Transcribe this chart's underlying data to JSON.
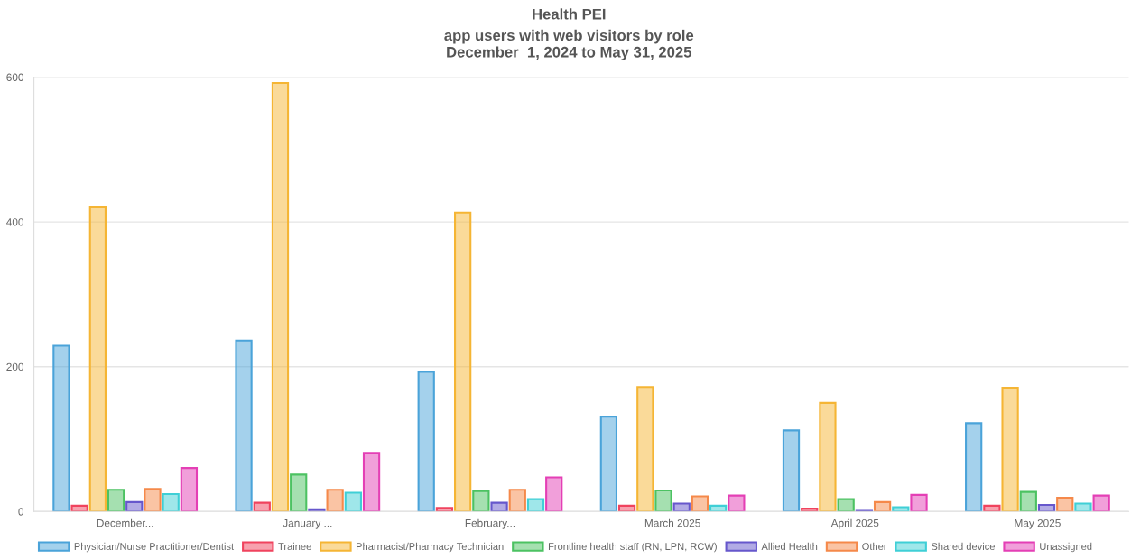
{
  "chart_data": {
    "type": "bar",
    "title": "Health PEI",
    "subtitle": "app users with web visitors by role\nDecember  1, 2024 to May 31, 2025",
    "categories": [
      "December...",
      "January ...",
      "February...",
      "March 2025",
      "April 2025",
      "May 2025"
    ],
    "series": [
      {
        "name": "Physician/Nurse Practitioner/Dentist",
        "color": "#4aa3d9",
        "values": [
          229,
          236,
          193,
          131,
          112,
          122
        ]
      },
      {
        "name": "Trainee",
        "color": "#f0435e",
        "values": [
          8,
          12,
          5,
          8,
          4,
          8
        ]
      },
      {
        "name": "Pharmacist/Pharmacy Technician",
        "color": "#f5b534",
        "values": [
          420,
          592,
          413,
          172,
          150,
          171
        ]
      },
      {
        "name": "Frontline health staff (RN, LPN, RCW)",
        "color": "#4cc262",
        "values": [
          30,
          51,
          28,
          29,
          17,
          27
        ]
      },
      {
        "name": "Allied Health",
        "color": "#6657cc",
        "values": [
          13,
          3,
          12,
          11,
          1,
          9
        ]
      },
      {
        "name": "Other",
        "color": "#f5894a",
        "values": [
          31,
          30,
          30,
          21,
          13,
          19
        ]
      },
      {
        "name": "Shared device",
        "color": "#3fcfd6",
        "values": [
          24,
          26,
          17,
          8,
          6,
          11
        ]
      },
      {
        "name": "Unassigned",
        "color": "#e43fb5",
        "values": [
          60,
          81,
          47,
          22,
          23,
          22
        ]
      }
    ],
    "ylim": [
      0,
      600
    ],
    "yticks": [
      0,
      200,
      400,
      600
    ],
    "grid": "y",
    "legend": "bottom"
  }
}
